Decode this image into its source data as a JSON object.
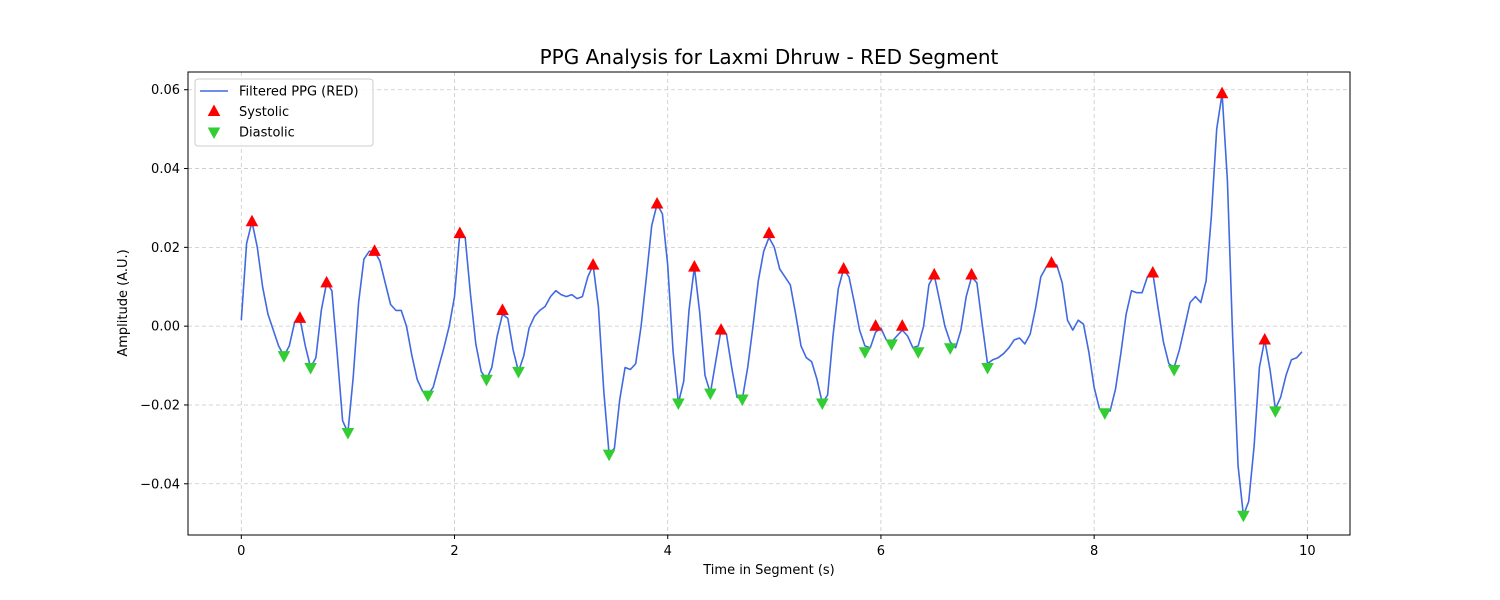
{
  "chart_data": {
    "type": "line",
    "title": "PPG Analysis for Laxmi Dhruw - RED Segment",
    "xlabel": "Time in Segment (s)",
    "ylabel": "Amplitude (A.U.)",
    "xlim": [
      -0.5,
      10.4
    ],
    "ylim": [
      -0.053,
      0.0645
    ],
    "xticks": [
      0,
      2,
      4,
      6,
      8,
      10
    ],
    "yticks": [
      -0.04,
      -0.02,
      0.0,
      0.02,
      0.04,
      0.06
    ],
    "xtick_labels": [
      "0",
      "2",
      "4",
      "6",
      "8",
      "10"
    ],
    "ytick_labels": [
      "−0.04",
      "−0.02",
      "0.00",
      "0.02",
      "0.04",
      "0.06"
    ],
    "grid": true,
    "legend_position": "upper left",
    "colors": {
      "line": "#4169E1",
      "systolic": "#FF0000",
      "diastolic": "#32CD32"
    },
    "series": [
      {
        "name": "Filtered PPG (RED)",
        "kind": "line",
        "points": [
          [
            0,
            0.0015
          ],
          [
            0.05,
            0.021
          ],
          [
            0.1,
            0.0265
          ],
          [
            0.15,
            0.02
          ],
          [
            0.2,
            0.01
          ],
          [
            0.25,
            0.003
          ],
          [
            0.3,
            -0.001
          ],
          [
            0.35,
            -0.005
          ],
          [
            0.4,
            -0.0075
          ],
          [
            0.45,
            -0.005
          ],
          [
            0.5,
            0.001
          ],
          [
            0.55,
            0.002
          ],
          [
            0.6,
            -0.005
          ],
          [
            0.65,
            -0.0105
          ],
          [
            0.7,
            -0.008
          ],
          [
            0.75,
            0.004
          ],
          [
            0.8,
            0.011
          ],
          [
            0.85,
            0.009
          ],
          [
            0.9,
            -0.007
          ],
          [
            0.95,
            -0.024
          ],
          [
            1.0,
            -0.027
          ],
          [
            1.05,
            -0.013
          ],
          [
            1.1,
            0.006
          ],
          [
            1.15,
            0.017
          ],
          [
            1.2,
            0.019
          ],
          [
            1.25,
            0.019
          ],
          [
            1.3,
            0.0165
          ],
          [
            1.35,
            0.011
          ],
          [
            1.4,
            0.0055
          ],
          [
            1.45,
            0.004
          ],
          [
            1.5,
            0.004
          ],
          [
            1.55,
            0.0
          ],
          [
            1.6,
            -0.0075
          ],
          [
            1.65,
            -0.0135
          ],
          [
            1.7,
            -0.0165
          ],
          [
            1.75,
            -0.0175
          ],
          [
            1.8,
            -0.0155
          ],
          [
            1.85,
            -0.0105
          ],
          [
            1.9,
            -0.0055
          ],
          [
            1.95,
            0.0
          ],
          [
            2.0,
            0.0075
          ],
          [
            2.05,
            0.0235
          ],
          [
            2.1,
            0.0225
          ],
          [
            2.15,
            0.008
          ],
          [
            2.2,
            -0.0045
          ],
          [
            2.25,
            -0.0115
          ],
          [
            2.3,
            -0.0135
          ],
          [
            2.35,
            -0.0105
          ],
          [
            2.4,
            -0.0025
          ],
          [
            2.45,
            0.003
          ],
          [
            2.5,
            0.002
          ],
          [
            2.55,
            -0.006
          ],
          [
            2.6,
            -0.0115
          ],
          [
            2.65,
            -0.0075
          ],
          [
            2.7,
            -0.0005
          ],
          [
            2.75,
            0.0025
          ],
          [
            2.8,
            0.004
          ],
          [
            2.85,
            0.005
          ],
          [
            2.9,
            0.0075
          ],
          [
            2.95,
            0.009
          ],
          [
            3.0,
            0.008
          ],
          [
            3.05,
            0.0075
          ],
          [
            3.1,
            0.008
          ],
          [
            3.15,
            0.007
          ],
          [
            3.2,
            0.0075
          ],
          [
            3.25,
            0.0125
          ],
          [
            3.3,
            0.0155
          ],
          [
            3.35,
            0.005
          ],
          [
            3.4,
            -0.0165
          ],
          [
            3.45,
            -0.0325
          ],
          [
            3.5,
            -0.031
          ],
          [
            3.55,
            -0.0185
          ],
          [
            3.6,
            -0.0105
          ],
          [
            3.65,
            -0.011
          ],
          [
            3.7,
            -0.0095
          ],
          [
            3.75,
            0.0
          ],
          [
            3.8,
            0.0125
          ],
          [
            3.85,
            0.0255
          ],
          [
            3.9,
            0.031
          ],
          [
            3.95,
            0.0285
          ],
          [
            4.0,
            0.0155
          ],
          [
            4.05,
            -0.0065
          ],
          [
            4.1,
            -0.0195
          ],
          [
            4.15,
            -0.014
          ],
          [
            4.2,
            0.004
          ],
          [
            4.25,
            0.015
          ],
          [
            4.3,
            0.0035
          ],
          [
            4.35,
            -0.0125
          ],
          [
            4.4,
            -0.017
          ],
          [
            4.45,
            -0.009
          ],
          [
            4.5,
            -0.001
          ],
          [
            4.55,
            -0.002
          ],
          [
            4.6,
            -0.0105
          ],
          [
            4.65,
            -0.018
          ],
          [
            4.7,
            -0.0185
          ],
          [
            4.75,
            -0.0105
          ],
          [
            4.8,
            0.0
          ],
          [
            4.85,
            0.0115
          ],
          [
            4.9,
            0.019
          ],
          [
            4.95,
            0.0225
          ],
          [
            5.0,
            0.02
          ],
          [
            5.05,
            0.0145
          ],
          [
            5.1,
            0.0125
          ],
          [
            5.15,
            0.0105
          ],
          [
            5.2,
            0.003
          ],
          [
            5.25,
            -0.005
          ],
          [
            5.3,
            -0.008
          ],
          [
            5.35,
            -0.009
          ],
          [
            5.4,
            -0.0135
          ],
          [
            5.45,
            -0.0195
          ],
          [
            5.5,
            -0.0175
          ],
          [
            5.55,
            -0.0025
          ],
          [
            5.6,
            0.0095
          ],
          [
            5.65,
            0.0145
          ],
          [
            5.7,
            0.0125
          ],
          [
            5.75,
            0.006
          ],
          [
            5.8,
            -0.001
          ],
          [
            5.85,
            -0.005
          ],
          [
            5.9,
            -0.0055
          ],
          [
            5.95,
            -0.0015
          ],
          [
            6.0,
            -0.0005
          ],
          [
            6.05,
            -0.0035
          ],
          [
            6.1,
            -0.004
          ],
          [
            6.15,
            -0.0025
          ],
          [
            6.2,
            -0.001
          ],
          [
            6.25,
            -0.0025
          ],
          [
            6.3,
            -0.0055
          ],
          [
            6.35,
            -0.005
          ],
          [
            6.4,
            0.0
          ],
          [
            6.45,
            0.0105
          ],
          [
            6.5,
            0.013
          ],
          [
            6.55,
            0.0065
          ],
          [
            6.6,
            0.0
          ],
          [
            6.65,
            -0.004
          ],
          [
            6.7,
            -0.0055
          ],
          [
            6.75,
            -0.001
          ],
          [
            6.8,
            0.0075
          ],
          [
            6.85,
            0.0125
          ],
          [
            6.9,
            0.011
          ],
          [
            6.95,
            0.0005
          ],
          [
            7.0,
            -0.0095
          ],
          [
            7.05,
            -0.0085
          ],
          [
            7.1,
            -0.008
          ],
          [
            7.15,
            -0.007
          ],
          [
            7.2,
            -0.0055
          ],
          [
            7.25,
            -0.0035
          ],
          [
            7.3,
            -0.003
          ],
          [
            7.35,
            -0.0045
          ],
          [
            7.4,
            -0.002
          ],
          [
            7.45,
            0.0045
          ],
          [
            7.5,
            0.0125
          ],
          [
            7.55,
            0.015
          ],
          [
            7.6,
            0.016
          ],
          [
            7.65,
            0.0155
          ],
          [
            7.7,
            0.011
          ],
          [
            7.75,
            0.0015
          ],
          [
            7.8,
            -0.001
          ],
          [
            7.85,
            0.0015
          ],
          [
            7.9,
            0.0005
          ],
          [
            7.95,
            -0.0065
          ],
          [
            8.0,
            -0.0155
          ],
          [
            8.05,
            -0.021
          ],
          [
            8.1,
            -0.0215
          ],
          [
            8.15,
            -0.0215
          ],
          [
            8.2,
            -0.016
          ],
          [
            8.25,
            -0.007
          ],
          [
            8.3,
            0.003
          ],
          [
            8.35,
            0.009
          ],
          [
            8.4,
            0.0085
          ],
          [
            8.45,
            0.0085
          ],
          [
            8.5,
            0.0125
          ],
          [
            8.55,
            0.0135
          ],
          [
            8.6,
            0.0045
          ],
          [
            8.65,
            -0.004
          ],
          [
            8.7,
            -0.0095
          ],
          [
            8.75,
            -0.0105
          ],
          [
            8.8,
            -0.006
          ],
          [
            8.85,
            0.0
          ],
          [
            8.9,
            0.006
          ],
          [
            8.95,
            0.0075
          ],
          [
            9.0,
            0.006
          ],
          [
            9.05,
            0.0115
          ],
          [
            9.1,
            0.028
          ],
          [
            9.15,
            0.05
          ],
          [
            9.2,
            0.059
          ],
          [
            9.25,
            0.037
          ],
          [
            9.3,
            -0.003
          ],
          [
            9.35,
            -0.0355
          ],
          [
            9.4,
            -0.048
          ],
          [
            9.45,
            -0.0445
          ],
          [
            9.5,
            -0.0305
          ],
          [
            9.55,
            -0.0105
          ],
          [
            9.6,
            -0.0035
          ],
          [
            9.65,
            -0.011
          ],
          [
            9.7,
            -0.021
          ],
          [
            9.75,
            -0.018
          ],
          [
            9.8,
            -0.0125
          ],
          [
            9.85,
            -0.0085
          ],
          [
            9.9,
            -0.008
          ],
          [
            9.95,
            -0.0065
          ]
        ]
      },
      {
        "name": "Systolic",
        "kind": "marker-up",
        "points": [
          [
            0.1,
            0.0265
          ],
          [
            0.55,
            0.002
          ],
          [
            0.8,
            0.011
          ],
          [
            1.25,
            0.019
          ],
          [
            2.05,
            0.0235
          ],
          [
            2.45,
            0.004
          ],
          [
            3.3,
            0.0155
          ],
          [
            3.9,
            0.031
          ],
          [
            4.25,
            0.015
          ],
          [
            4.5,
            -0.001
          ],
          [
            4.95,
            0.0235
          ],
          [
            5.65,
            0.0145
          ],
          [
            5.95,
            0.0
          ],
          [
            6.2,
            0.0
          ],
          [
            6.5,
            0.013
          ],
          [
            6.85,
            0.013
          ],
          [
            7.6,
            0.016
          ],
          [
            8.55,
            0.0135
          ],
          [
            9.2,
            0.059
          ],
          [
            9.6,
            -0.0035
          ]
        ]
      },
      {
        "name": "Diastolic",
        "kind": "marker-down",
        "points": [
          [
            0.4,
            -0.0075
          ],
          [
            0.65,
            -0.0105
          ],
          [
            1.0,
            -0.027
          ],
          [
            1.75,
            -0.0175
          ],
          [
            2.3,
            -0.0135
          ],
          [
            2.6,
            -0.0115
          ],
          [
            3.45,
            -0.0325
          ],
          [
            4.1,
            -0.0195
          ],
          [
            4.4,
            -0.017
          ],
          [
            4.7,
            -0.0185
          ],
          [
            5.45,
            -0.0195
          ],
          [
            5.85,
            -0.0065
          ],
          [
            6.1,
            -0.0045
          ],
          [
            6.35,
            -0.0065
          ],
          [
            6.65,
            -0.0055
          ],
          [
            7.0,
            -0.0105
          ],
          [
            8.1,
            -0.022
          ],
          [
            8.75,
            -0.011
          ],
          [
            9.4,
            -0.048
          ],
          [
            9.7,
            -0.0215
          ]
        ]
      }
    ]
  }
}
